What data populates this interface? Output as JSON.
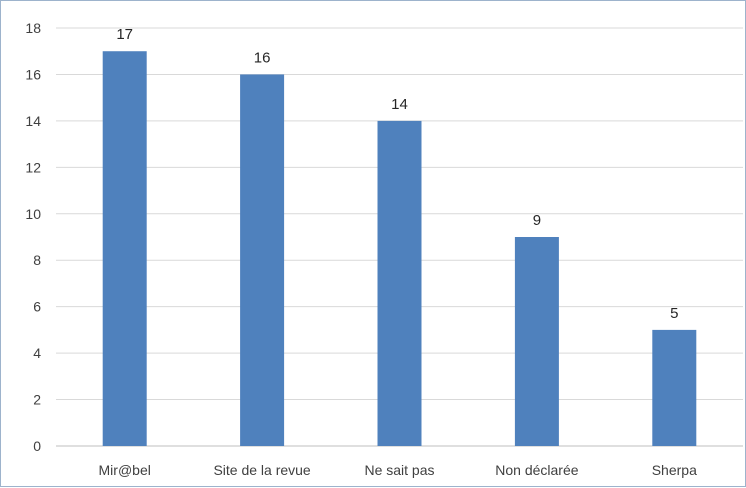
{
  "chart_data": {
    "type": "bar",
    "categories": [
      "Mir@bel",
      "Site de la revue",
      "Ne sait pas",
      "Non déclarée",
      "Sherpa"
    ],
    "values": [
      17,
      16,
      14,
      9,
      5
    ],
    "data_labels": [
      "17",
      "16",
      "14",
      "9",
      "5"
    ],
    "y_ticks": [
      "0",
      "2",
      "4",
      "6",
      "8",
      "10",
      "12",
      "14",
      "16",
      "18"
    ],
    "ylim": [
      0,
      18
    ],
    "grid": true,
    "legend": "none",
    "bar_color": "#4f81bd",
    "grid_color": "#d9d9d9",
    "axis_color": "#bfbfbf"
  }
}
